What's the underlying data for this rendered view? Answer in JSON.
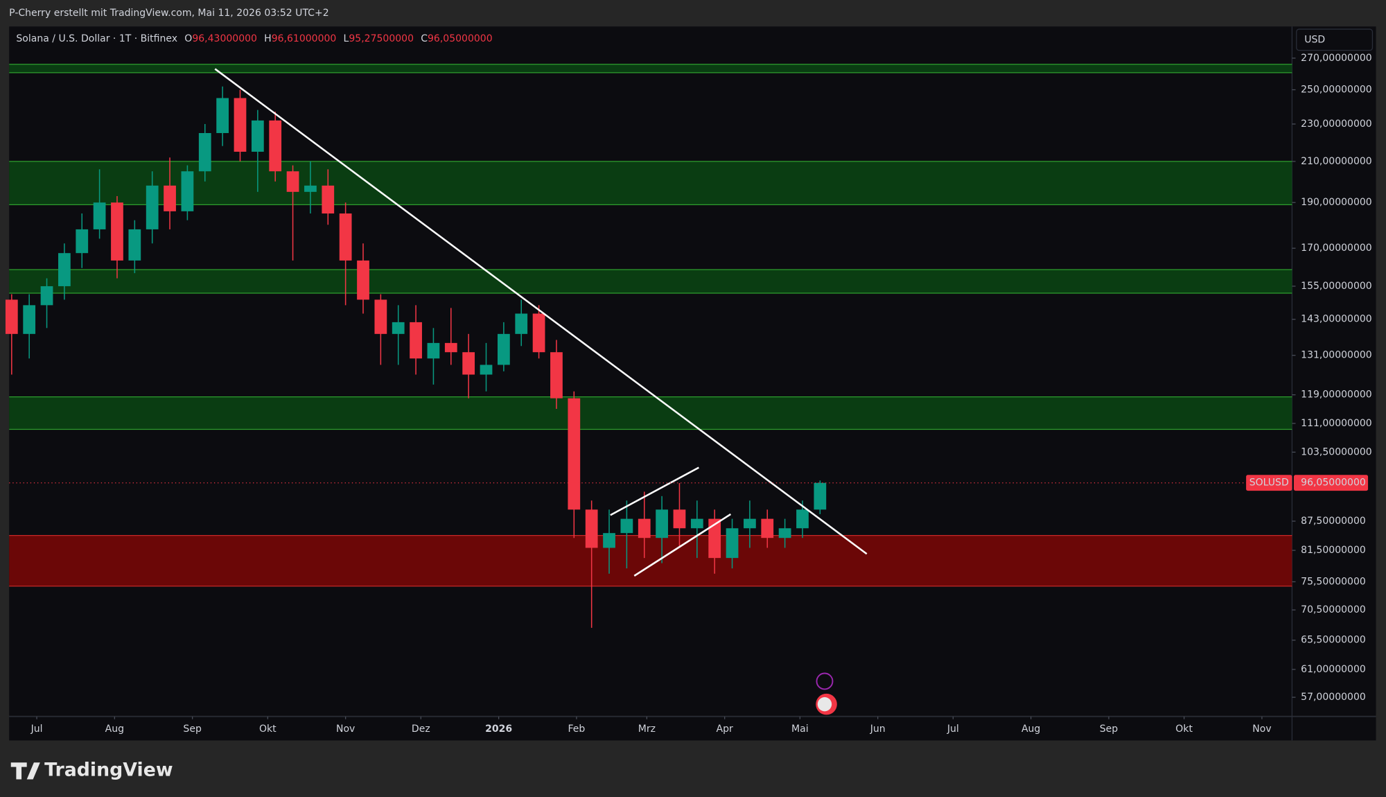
{
  "header": {
    "credit": "P-Cherry erstellt mit TradingView.com, Mai 11, 2026 03:52 UTC+2",
    "brand": "TradingView"
  },
  "chart_data": {
    "type": "candlestick",
    "title": "Solana / U.S. Dollar · 1T · Bitfinex",
    "ohlc_legend": [
      {
        "key": "O",
        "text": "96,43000000"
      },
      {
        "key": "H",
        "text": "96,61000000"
      },
      {
        "key": "L",
        "text": "95,27500000"
      },
      {
        "key": "C",
        "text": "96,05000000"
      }
    ],
    "currency": "USD",
    "log_scale": true,
    "grid": false,
    "up_color": "#089981",
    "down_color": "#f23645",
    "xlim": [
      -11,
      500
    ],
    "xticks": [
      {
        "value": 0,
        "label": "Jul"
      },
      {
        "value": 31,
        "label": "Aug"
      },
      {
        "value": 62,
        "label": "Sep"
      },
      {
        "value": 92,
        "label": "Okt"
      },
      {
        "value": 123,
        "label": "Nov"
      },
      {
        "value": 153,
        "label": "Dez"
      },
      {
        "value": 184,
        "label": "2026"
      },
      {
        "value": 215,
        "label": "Feb"
      },
      {
        "value": 243,
        "label": "Mrz"
      },
      {
        "value": 274,
        "label": "Apr"
      },
      {
        "value": 304,
        "label": "Mai"
      },
      {
        "value": 335,
        "label": "Jun"
      },
      {
        "value": 365,
        "label": "Jul"
      },
      {
        "value": 396,
        "label": "Aug"
      },
      {
        "value": 427,
        "label": "Sep"
      },
      {
        "value": 457,
        "label": "Okt"
      },
      {
        "value": 488,
        "label": "Nov"
      }
    ],
    "ylim": [
      54.5,
      291.6
    ],
    "yticks": [
      {
        "value": 270,
        "label": "270,00000000"
      },
      {
        "value": 250,
        "label": "250,00000000"
      },
      {
        "value": 230,
        "label": "230,00000000"
      },
      {
        "value": 210,
        "label": "210,00000000"
      },
      {
        "value": 190,
        "label": "190,00000000"
      },
      {
        "value": 170,
        "label": "170,00000000"
      },
      {
        "value": 155,
        "label": "155,00000000"
      },
      {
        "value": 143,
        "label": "143,00000000"
      },
      {
        "value": 131,
        "label": "131,00000000"
      },
      {
        "value": 119,
        "label": "119,00000000"
      },
      {
        "value": 111,
        "label": "111,00000000"
      },
      {
        "value": 103.5,
        "label": "103,50000000"
      },
      {
        "value": 87.5,
        "label": "87,50000000"
      },
      {
        "value": 81.5,
        "label": "81,50000000"
      },
      {
        "value": 75.5,
        "label": "75,50000000"
      },
      {
        "value": 70.5,
        "label": "70,50000000"
      },
      {
        "value": 65.5,
        "label": "65,50000000"
      },
      {
        "value": 61,
        "label": "61,00000000"
      },
      {
        "value": 57,
        "label": "57,00000000"
      }
    ],
    "price_line": {
      "name": "SOLUSD",
      "value": 96.05,
      "label": "96,05000000",
      "color": "#f23645"
    },
    "zones": [
      {
        "from": 260.6,
        "to": 266,
        "color": "#0a3d12"
      },
      {
        "from": 189,
        "to": 210,
        "color": "#0a3d12"
      },
      {
        "from": 152.4,
        "to": 161.4,
        "color": "#0a3d12"
      },
      {
        "from": 109.4,
        "to": 118.4,
        "color": "#0a3d12"
      },
      {
        "from": 74.7,
        "to": 84.5,
        "color": "#6b0707"
      }
    ],
    "trend_lines": [
      {
        "x": [
          71,
          330.6
        ],
        "y": [
          263,
          80.8
        ]
      },
      {
        "x": [
          228.5,
          263.7
        ],
        "y": [
          88.8,
          99.7
        ]
      },
      {
        "x": [
          238,
          276.4
        ],
        "y": [
          76.6,
          89
        ]
      }
    ],
    "candles": {
      "x": [
        -10,
        -3,
        4,
        11,
        18,
        25,
        32,
        39,
        46,
        53,
        60,
        67,
        74,
        81,
        88,
        95,
        102,
        109,
        116,
        123,
        130,
        137,
        144,
        151,
        158,
        165,
        172,
        179,
        186,
        193,
        200,
        207,
        214,
        221,
        228,
        235,
        242,
        249,
        256,
        263,
        270,
        277,
        284,
        291,
        298,
        305,
        312
      ],
      "open": [
        150,
        138,
        148,
        155,
        168,
        178,
        190,
        165,
        178,
        198,
        186,
        205,
        225,
        245,
        215,
        232,
        205,
        195,
        198,
        185,
        165,
        150,
        138,
        142,
        130,
        135,
        132,
        125,
        128,
        138,
        145,
        132,
        118,
        90,
        82,
        85,
        88,
        84,
        90,
        86,
        88,
        80,
        86,
        88,
        84,
        86,
        90
      ],
      "high": [
        152,
        152,
        158,
        172,
        185,
        206,
        193,
        182,
        205,
        212,
        208,
        230,
        252,
        250,
        238,
        237,
        208,
        210,
        206,
        190,
        172,
        152,
        148,
        148,
        140,
        147,
        138,
        135,
        142,
        150,
        148,
        136,
        120,
        92,
        90,
        92,
        94,
        93,
        96,
        92,
        90,
        88,
        92,
        90,
        88,
        92,
        96.61
      ],
      "low": [
        125,
        130,
        140,
        150,
        162,
        174,
        158,
        160,
        172,
        178,
        182,
        200,
        218,
        210,
        195,
        200,
        165,
        185,
        180,
        148,
        145,
        128,
        128,
        125,
        122,
        128,
        118,
        120,
        126,
        134,
        130,
        115,
        84,
        67.5,
        77,
        78,
        80,
        79,
        82,
        80,
        77,
        78,
        82,
        82,
        82,
        84,
        89
      ],
      "close": [
        138,
        148,
        155,
        168,
        178,
        190,
        165,
        178,
        198,
        186,
        205,
        225,
        245,
        215,
        232,
        205,
        195,
        198,
        185,
        165,
        150,
        138,
        142,
        130,
        135,
        132,
        125,
        128,
        138,
        145,
        132,
        118,
        90,
        82,
        85,
        88,
        84,
        90,
        86,
        88,
        80,
        86,
        88,
        84,
        86,
        90,
        96.05
      ]
    }
  }
}
